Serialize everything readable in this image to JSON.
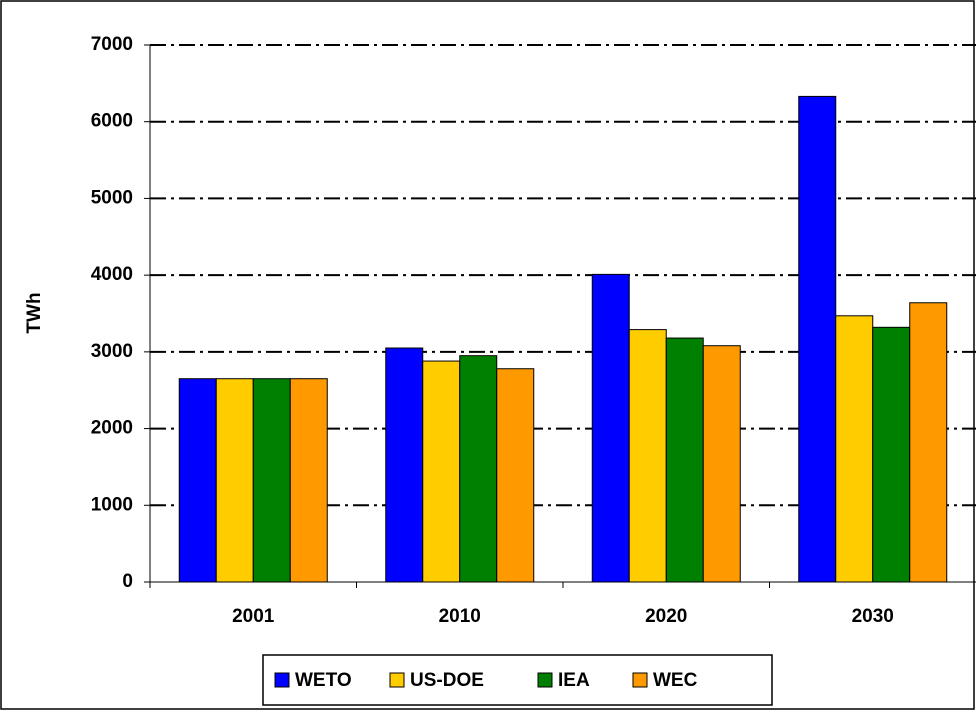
{
  "chart_data": {
    "type": "bar",
    "y_label": "TWh",
    "categories": [
      "2001",
      "2010",
      "2020",
      "2030"
    ],
    "series": [
      {
        "name": "WETO",
        "color": "#0000ff",
        "values": [
          2650,
          3050,
          4010,
          6330
        ]
      },
      {
        "name": "US-DOE",
        "color": "#ffcc00",
        "values": [
          2650,
          2880,
          3290,
          3470
        ]
      },
      {
        "name": "IEA",
        "color": "#008000",
        "values": [
          2650,
          2950,
          3180,
          3320
        ]
      },
      {
        "name": "WEC",
        "color": "#ff9900",
        "values": [
          2650,
          2780,
          3080,
          3640
        ]
      }
    ],
    "ylim": [
      0,
      7000
    ],
    "yticks": [
      0,
      1000,
      2000,
      3000,
      4000,
      5000,
      6000,
      7000
    ],
    "grid": true,
    "legend": "bottom"
  }
}
